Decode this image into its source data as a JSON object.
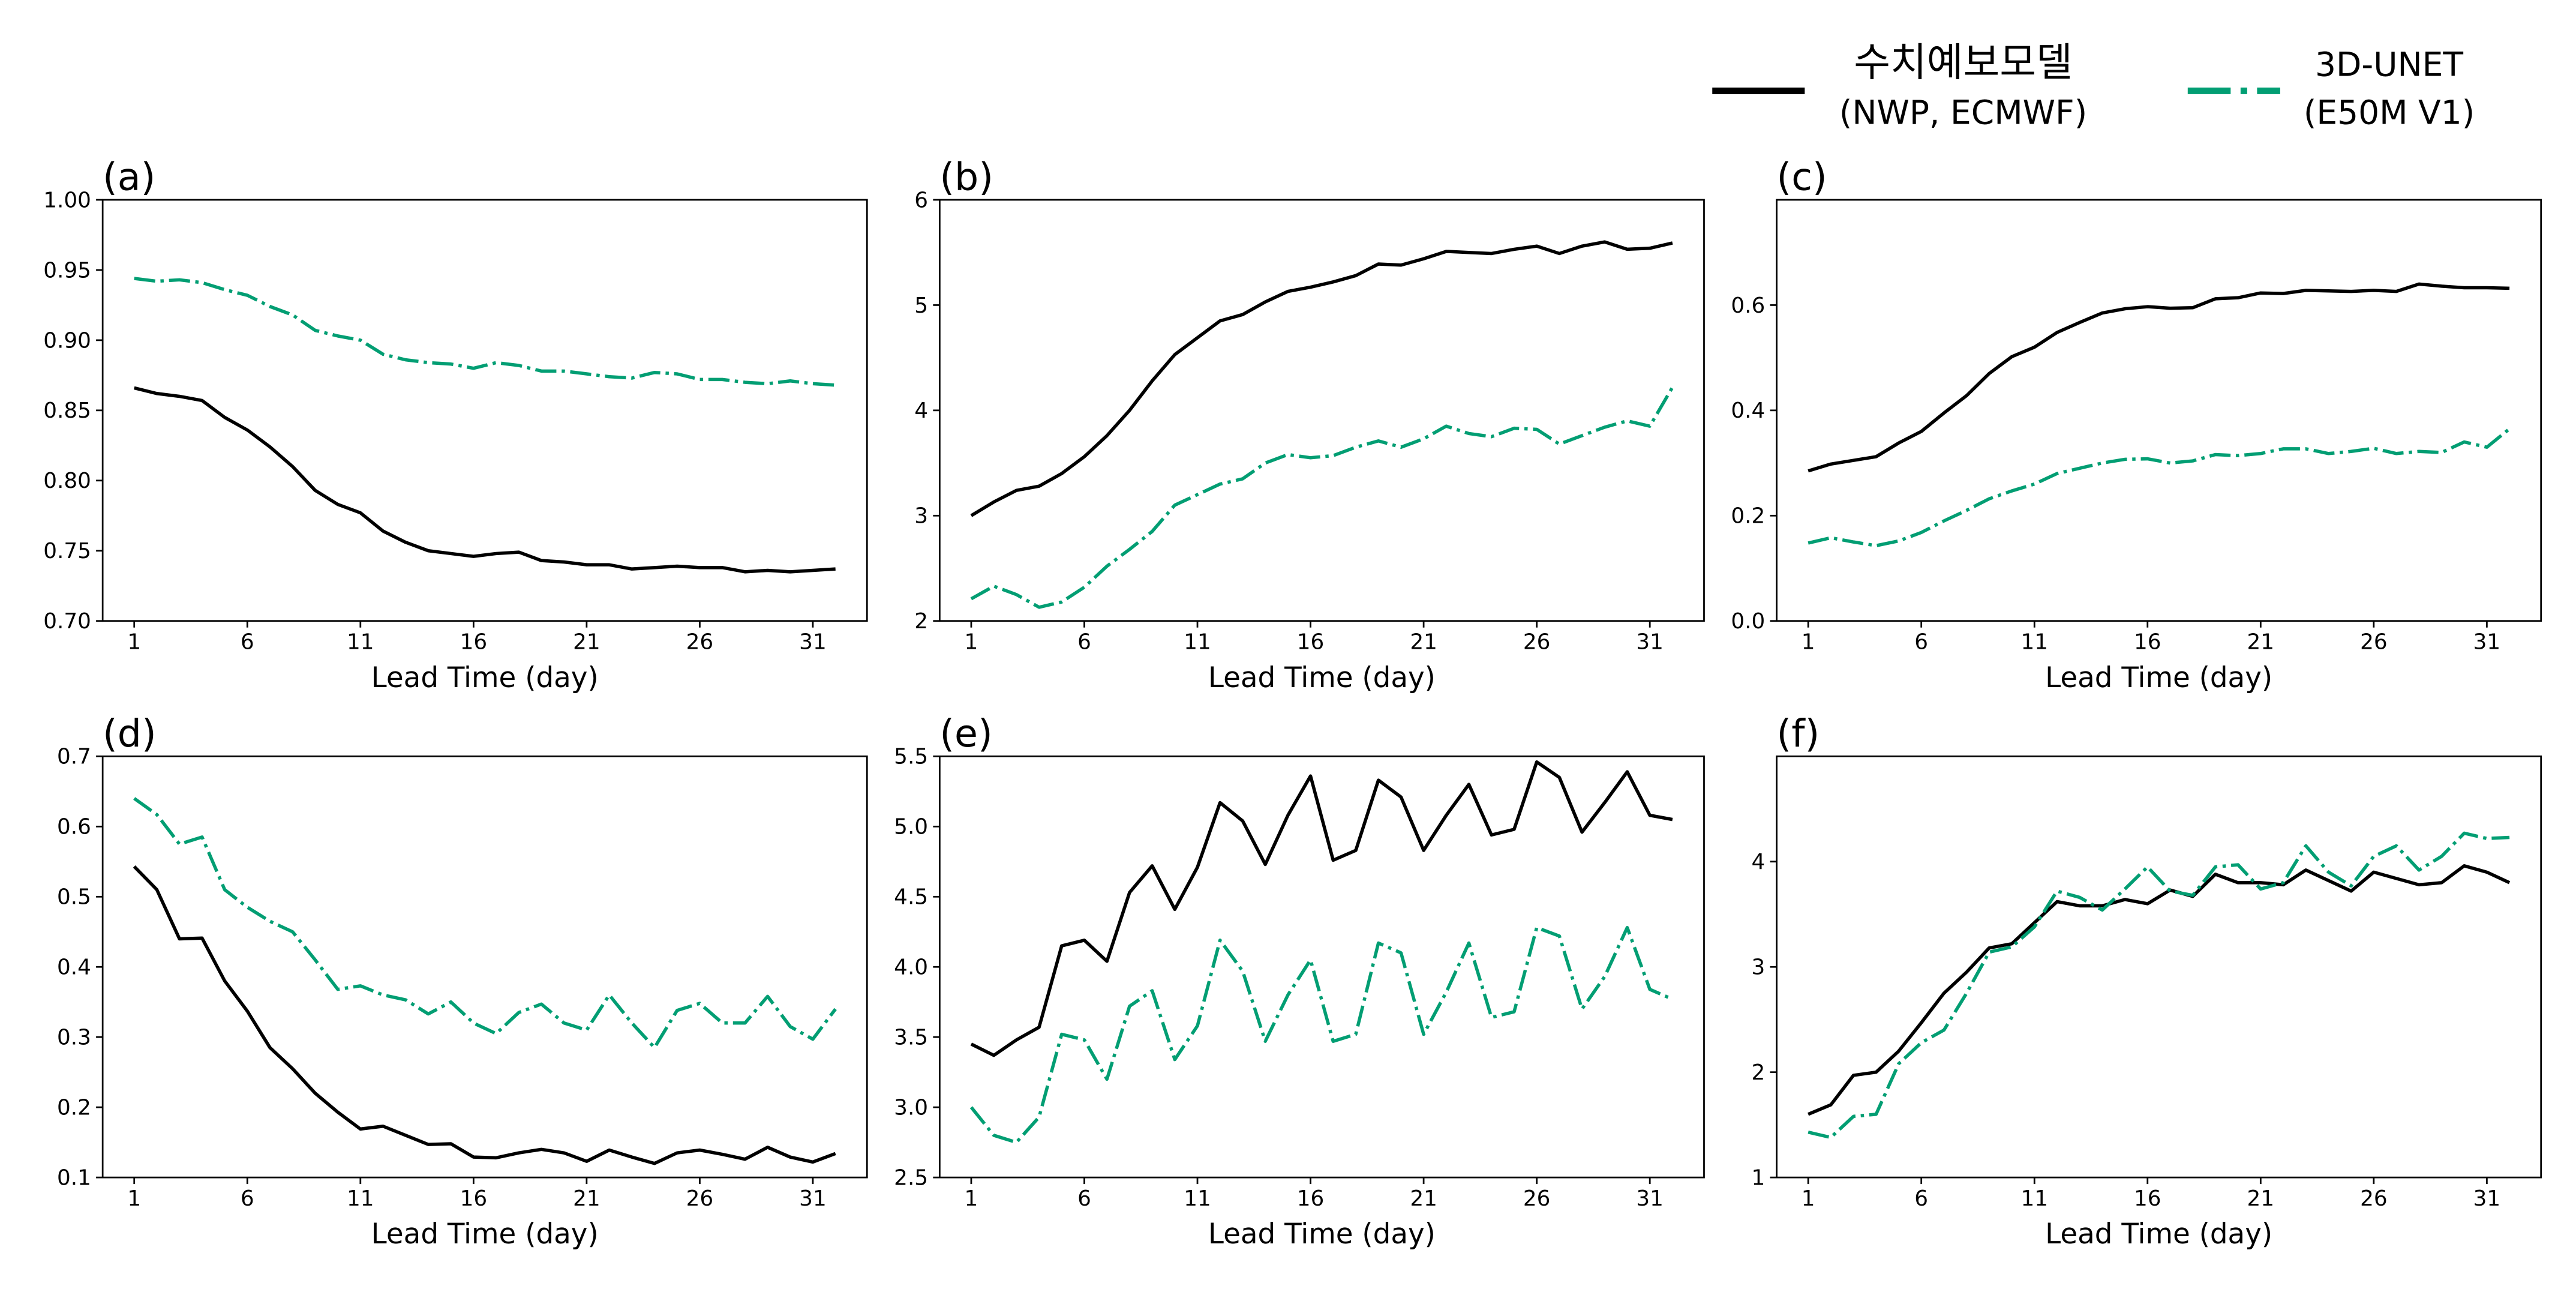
{
  "legend": {
    "items": [
      {
        "label_line1": "수치예보모델",
        "label_line2": "(NWP, ECMWF)",
        "color": "#000000",
        "style": "solid"
      },
      {
        "label_line1": "3D-UNET",
        "label_line2": "(E50M V1)",
        "color": "#029e73",
        "style": "dash-dot"
      }
    ],
    "placement": "top-right"
  },
  "chart_data": [
    {
      "type": "line",
      "panel_label": "(a)",
      "xlabel": "Lead Time (day)",
      "ylim": [
        0.7,
        1.0
      ],
      "yticks": [
        "0.70",
        "0.75",
        "0.80",
        "0.85",
        "0.90",
        "0.95",
        "1.00"
      ],
      "xticks": [
        "1",
        "6",
        "11",
        "16",
        "21",
        "26",
        "31"
      ],
      "x_start": 1,
      "series": [
        {
          "name": "수치예보모델 (NWP, ECMWF)",
          "values": [
            0.866,
            0.862,
            0.86,
            0.857,
            0.845,
            0.836,
            0.824,
            0.81,
            0.793,
            0.783,
            0.777,
            0.764,
            0.756,
            0.75,
            0.748,
            0.746,
            0.748,
            0.749,
            0.743,
            0.742,
            0.74,
            0.74,
            0.737,
            0.738,
            0.739,
            0.738,
            0.738,
            0.735,
            0.736,
            0.735,
            0.736,
            0.737
          ]
        },
        {
          "name": "3D-UNET (E50M V1)",
          "values": [
            0.944,
            0.942,
            0.943,
            0.941,
            0.936,
            0.932,
            0.924,
            0.918,
            0.907,
            0.903,
            0.9,
            0.89,
            0.886,
            0.884,
            0.883,
            0.88,
            0.884,
            0.882,
            0.878,
            0.878,
            0.876,
            0.874,
            0.873,
            0.877,
            0.876,
            0.872,
            0.872,
            0.87,
            0.869,
            0.871,
            0.869,
            0.868
          ]
        }
      ]
    },
    {
      "type": "line",
      "panel_label": "(b)",
      "xlabel": "Lead Time (day)",
      "ylim": [
        2,
        6
      ],
      "yticks": [
        "2",
        "3",
        "4",
        "5",
        "6"
      ],
      "xticks": [
        "1",
        "6",
        "11",
        "16",
        "21",
        "26",
        "31"
      ],
      "x_start": 1,
      "series": [
        {
          "name": "수치예보모델 (NWP, ECMWF)",
          "values": [
            3.0,
            3.13,
            3.24,
            3.28,
            3.4,
            3.56,
            3.76,
            4.0,
            4.28,
            4.53,
            4.69,
            4.85,
            4.91,
            5.03,
            5.13,
            5.17,
            5.22,
            5.28,
            5.39,
            5.38,
            5.44,
            5.51,
            5.5,
            5.49,
            5.53,
            5.56,
            5.49,
            5.56,
            5.6,
            5.53,
            5.54,
            5.59
          ]
        },
        {
          "name": "3D-UNET (E50M V1)",
          "values": [
            2.21,
            2.33,
            2.25,
            2.13,
            2.18,
            2.32,
            2.52,
            2.68,
            2.85,
            3.1,
            3.2,
            3.3,
            3.35,
            3.5,
            3.58,
            3.55,
            3.57,
            3.65,
            3.71,
            3.65,
            3.73,
            3.85,
            3.78,
            3.75,
            3.83,
            3.82,
            3.68,
            3.76,
            3.84,
            3.9,
            3.85,
            4.22
          ]
        }
      ]
    },
    {
      "type": "line",
      "panel_label": "(c)",
      "xlabel": "Lead Time (day)",
      "ylim": [
        0.0,
        0.8
      ],
      "yticks": [
        "0.0",
        "0.2",
        "0.4",
        "0.6"
      ],
      "xticks": [
        "1",
        "6",
        "11",
        "16",
        "21",
        "26",
        "31"
      ],
      "x_start": 1,
      "series": [
        {
          "name": "수치예보모델 (NWP, ECMWF)",
          "values": [
            0.285,
            0.298,
            0.305,
            0.312,
            0.338,
            0.36,
            0.395,
            0.428,
            0.47,
            0.502,
            0.52,
            0.548,
            0.567,
            0.585,
            0.593,
            0.597,
            0.594,
            0.595,
            0.612,
            0.614,
            0.623,
            0.622,
            0.628,
            0.627,
            0.626,
            0.628,
            0.626,
            0.64,
            0.636,
            0.633,
            0.633,
            0.632
          ]
        },
        {
          "name": "3D-UNET (E50M V1)",
          "values": [
            0.148,
            0.158,
            0.15,
            0.143,
            0.152,
            0.168,
            0.19,
            0.21,
            0.232,
            0.247,
            0.26,
            0.28,
            0.29,
            0.3,
            0.307,
            0.308,
            0.3,
            0.304,
            0.316,
            0.314,
            0.318,
            0.327,
            0.327,
            0.318,
            0.322,
            0.328,
            0.318,
            0.322,
            0.32,
            0.34,
            0.33,
            0.365
          ]
        }
      ]
    },
    {
      "type": "line",
      "panel_label": "(d)",
      "xlabel": "Lead Time (day)",
      "ylim": [
        0.1,
        0.7
      ],
      "yticks": [
        "0.1",
        "0.2",
        "0.3",
        "0.4",
        "0.5",
        "0.6",
        "0.7"
      ],
      "xticks": [
        "1",
        "6",
        "11",
        "16",
        "21",
        "26",
        "31"
      ],
      "x_start": 1,
      "series": [
        {
          "name": "수치예보모델 (NWP, ECMWF)",
          "values": [
            0.543,
            0.51,
            0.44,
            0.441,
            0.38,
            0.337,
            0.285,
            0.255,
            0.22,
            0.193,
            0.169,
            0.173,
            0.16,
            0.147,
            0.148,
            0.129,
            0.128,
            0.135,
            0.14,
            0.135,
            0.123,
            0.139,
            0.129,
            0.12,
            0.135,
            0.139,
            0.133,
            0.126,
            0.143,
            0.129,
            0.122,
            0.134
          ]
        },
        {
          "name": "3D-UNET (E50M V1)",
          "values": [
            0.64,
            0.617,
            0.575,
            0.585,
            0.51,
            0.485,
            0.465,
            0.45,
            0.41,
            0.368,
            0.373,
            0.36,
            0.353,
            0.333,
            0.35,
            0.32,
            0.305,
            0.335,
            0.347,
            0.32,
            0.31,
            0.36,
            0.32,
            0.285,
            0.338,
            0.348,
            0.32,
            0.32,
            0.358,
            0.315,
            0.297,
            0.34
          ]
        }
      ]
    },
    {
      "type": "line",
      "panel_label": "(e)",
      "xlabel": "Lead Time (day)",
      "ylim": [
        2.5,
        5.5
      ],
      "yticks": [
        "2.5",
        "3.0",
        "3.5",
        "4.0",
        "4.5",
        "5.0",
        "5.5"
      ],
      "xticks": [
        "1",
        "6",
        "11",
        "16",
        "21",
        "26",
        "31"
      ],
      "x_start": 1,
      "series": [
        {
          "name": "수치예보모델 (NWP, ECMWF)",
          "values": [
            3.45,
            3.37,
            3.48,
            3.57,
            4.15,
            4.19,
            4.04,
            4.53,
            4.72,
            4.41,
            4.71,
            5.17,
            5.04,
            4.73,
            5.08,
            5.36,
            4.76,
            4.83,
            5.33,
            5.21,
            4.83,
            5.08,
            5.3,
            4.94,
            4.98,
            5.46,
            5.35,
            4.96,
            5.17,
            5.39,
            5.08,
            5.05
          ]
        },
        {
          "name": "3D-UNET (E50M V1)",
          "values": [
            3.0,
            2.8,
            2.75,
            2.93,
            3.52,
            3.48,
            3.2,
            3.72,
            3.83,
            3.34,
            3.58,
            4.19,
            3.97,
            3.47,
            3.8,
            4.05,
            3.47,
            3.52,
            4.17,
            4.1,
            3.52,
            3.82,
            4.17,
            3.64,
            3.68,
            4.28,
            4.22,
            3.7,
            3.93,
            4.28,
            3.84,
            3.77
          ]
        }
      ]
    },
    {
      "type": "line",
      "panel_label": "(f)",
      "xlabel": "Lead Time (day)",
      "ylim": [
        1,
        5
      ],
      "yticks": [
        "1",
        "2",
        "3",
        "4"
      ],
      "xticks": [
        "1",
        "6",
        "11",
        "16",
        "21",
        "26",
        "31"
      ],
      "x_start": 1,
      "series": [
        {
          "name": "수치예보모델 (NWP, ECMWF)",
          "values": [
            1.6,
            1.69,
            1.97,
            2.0,
            2.2,
            2.47,
            2.75,
            2.95,
            3.18,
            3.22,
            3.42,
            3.62,
            3.58,
            3.58,
            3.64,
            3.6,
            3.73,
            3.67,
            3.88,
            3.8,
            3.8,
            3.78,
            3.92,
            3.82,
            3.72,
            3.9,
            3.84,
            3.78,
            3.8,
            3.96,
            3.9,
            3.8
          ]
        },
        {
          "name": "3D-UNET (E50M V1)",
          "values": [
            1.43,
            1.38,
            1.58,
            1.6,
            2.08,
            2.28,
            2.4,
            2.75,
            3.14,
            3.19,
            3.38,
            3.72,
            3.66,
            3.54,
            3.74,
            3.95,
            3.72,
            3.68,
            3.95,
            3.97,
            3.74,
            3.8,
            4.15,
            3.9,
            3.77,
            4.05,
            4.15,
            3.92,
            4.05,
            4.27,
            4.22,
            4.23
          ]
        }
      ]
    }
  ]
}
